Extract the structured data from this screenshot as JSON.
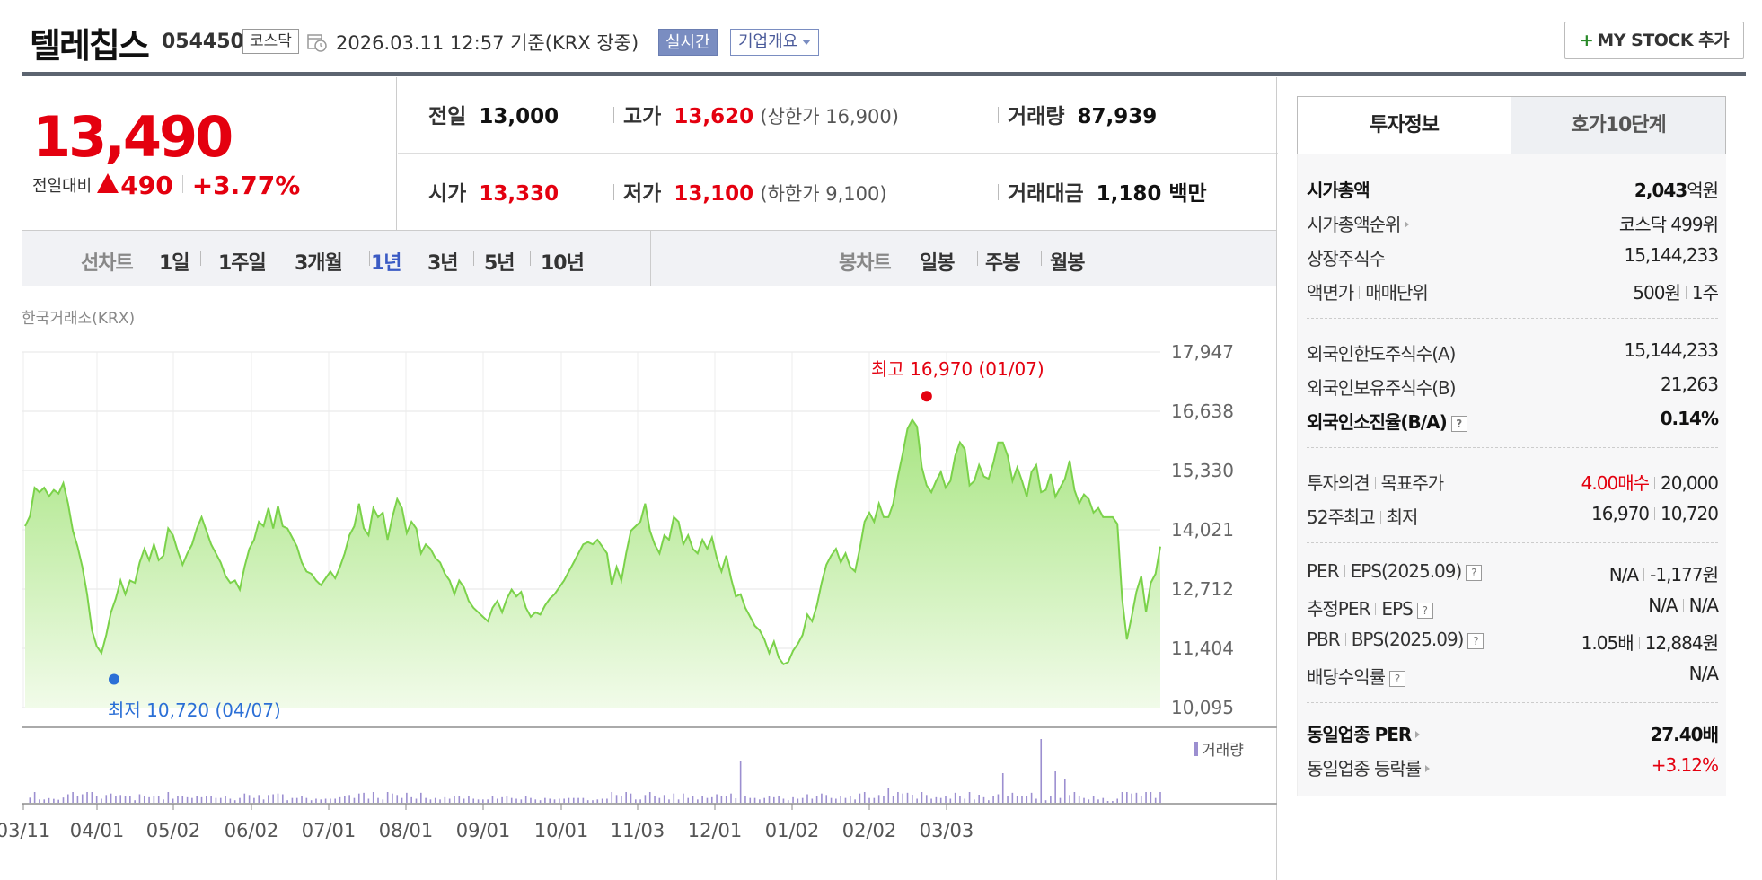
{
  "header": {
    "name": "텔레칩스",
    "code": "054450",
    "market": "코스닥",
    "datetime": "2026.03.11 12:57  기준(KRX 장중)",
    "realtime": "실시간",
    "corp_info": "기업개요",
    "mystock_plus": "+",
    "mystock": "MY STOCK 추가"
  },
  "price": {
    "current": "13,490",
    "diff_label": "전일대비",
    "diff_value": "490",
    "diff_pct": "+3.77%"
  },
  "stats": {
    "prev_label": "전일",
    "prev": "13,000",
    "high_label": "고가",
    "high": "13,620",
    "upper": "(상한가 16,900)",
    "vol_label": "거래량",
    "vol": "87,939",
    "open_label": "시가",
    "open": "13,330",
    "low_label": "저가",
    "low": "13,100",
    "lower": "(하한가 9,100)",
    "amt_label": "거래대금",
    "amt": "1,180 백만"
  },
  "period": {
    "line_label": "선차트",
    "line_items": [
      "1일",
      "1주일",
      "3개월",
      "1년",
      "3년",
      "5년",
      "10년"
    ],
    "active": "1년",
    "candle_label": "봉차트",
    "candle_items": [
      "일봉",
      "주봉",
      "월봉"
    ]
  },
  "exchange": "한국거래소(KRX)",
  "chart_data": {
    "type": "area",
    "x_ticks": [
      "03/11",
      "04/01",
      "05/02",
      "06/02",
      "07/01",
      "08/01",
      "09/01",
      "10/01",
      "11/03",
      "12/01",
      "01/02",
      "02/02",
      "03/03"
    ],
    "y_ticks": [
      "17,947",
      "16,638",
      "15,330",
      "14,021",
      "12,712",
      "11,404",
      "10,095"
    ],
    "ylim": [
      10095,
      17947
    ],
    "high_annotation": "최고 16,970 (01/07)",
    "low_annotation": "최저 10,720 (04/07)",
    "volume_legend": "거래량",
    "colors": {
      "line": "#7bd24a",
      "fill_top": "#a8e582",
      "fill_bottom": "#f1fbe9",
      "high": "#e4000f",
      "low": "#2b6fd6",
      "volume": "#9c8fd0"
    },
    "series": [
      {
        "values": [
          14100,
          14320,
          14950,
          14850,
          14950,
          14760,
          14900,
          14820,
          15050,
          14600,
          14000,
          13650,
          13200,
          12600,
          11800,
          11450,
          11300,
          11700,
          12200,
          12500,
          12900,
          12600,
          12900,
          12850,
          13300,
          13600,
          13350,
          13700,
          13350,
          13450,
          14050,
          13900,
          13550,
          13250,
          13500,
          13700,
          14050,
          14300,
          14000,
          13700,
          13500,
          13300,
          13000,
          12850,
          12900,
          12700,
          13200,
          13600,
          13800,
          14200,
          14100,
          14500,
          14050,
          14550,
          14100,
          14050,
          13850,
          13650,
          13300,
          13100,
          13050,
          12900,
          12800,
          12950,
          13100,
          12950,
          13200,
          13500,
          13900,
          14100,
          14600,
          14050,
          13900,
          14500,
          14300,
          14400,
          13800,
          14300,
          14700,
          14500,
          13950,
          14200,
          14050,
          13500,
          13700,
          13600,
          13400,
          13300,
          13050,
          12900,
          12600,
          12900,
          12750,
          12450,
          12300,
          12200,
          12100,
          12000,
          12300,
          12450,
          12200,
          12500,
          12700,
          12550,
          12650,
          12300,
          12100,
          12200,
          12150,
          12350,
          12500,
          12600,
          12750,
          12900,
          13100,
          13300,
          13500,
          13700,
          13750,
          13700,
          13800,
          13650,
          13500,
          12800,
          13200,
          12900,
          13500,
          14000,
          14100,
          14200,
          14600,
          14000,
          13700,
          13500,
          13900,
          13800,
          14300,
          14200,
          13700,
          13900,
          13600,
          13500,
          13800,
          13600,
          13850,
          13400,
          13100,
          13450,
          12950,
          12550,
          12600,
          12300,
          12100,
          11900,
          11800,
          11600,
          11300,
          11550,
          11200,
          11050,
          11100,
          11350,
          11500,
          11700,
          12150,
          12000,
          12350,
          12850,
          13250,
          13450,
          13600,
          13300,
          13500,
          13200,
          13100,
          13600,
          14200,
          14400,
          14200,
          14600,
          14300,
          14300,
          14600,
          15200,
          15700,
          16250,
          16450,
          16300,
          15400,
          15000,
          14850,
          15100,
          15300,
          14950,
          15100,
          15650,
          15950,
          15800,
          15000,
          15100,
          15450,
          15200,
          15150,
          15500,
          15950,
          15950,
          15650,
          15100,
          15400,
          15100,
          14750,
          15300,
          15450,
          14850,
          14900,
          15250,
          14750,
          14950,
          15150,
          15550,
          14900,
          14600,
          14800,
          14700,
          14400,
          14500,
          14300,
          14300,
          14300,
          14150,
          12500,
          11600,
          12100,
          12650,
          13000,
          12200,
          12850,
          13050,
          13650
        ]
      }
    ]
  },
  "panel": {
    "tab_active": "투자정보",
    "tab_other": "호가10단계",
    "mcap_label": "시가총액",
    "mcap_val": "2,043",
    "mcap_unit": "억원",
    "mcap_rank_label": "시가총액순위",
    "mcap_rank_val": "코스닥 499위",
    "shares_label": "상장주식수",
    "shares_val": "15,144,233",
    "par_label": "액면가",
    "unit_label": "매매단위",
    "par_val": "500원",
    "unit_val": "1주",
    "foreign_limit_label": "외국인한도주식수(A)",
    "foreign_limit_val": "15,144,233",
    "foreign_hold_label": "외국인보유주식수(B)",
    "foreign_hold_val": "21,263",
    "foreign_ratio_label": "외국인소진율(B/A)",
    "foreign_ratio_val": "0.14%",
    "opinion_label": "투자의견",
    "target_label": "목표주가",
    "opinion_val": "4.00매수",
    "target_val": "20,000",
    "w52_high_label": "52주최고",
    "w52_low_label": "최저",
    "w52_high_val": "16,970",
    "w52_low_val": "10,720",
    "per_label": "PER",
    "eps_label": "EPS(2025.09)",
    "per_val": "N/A",
    "eps_val": "-1,177원",
    "est_per_label": "추정PER",
    "est_eps_label": "EPS",
    "est_per_val": "N/A",
    "est_eps_val": "N/A",
    "pbr_label": "PBR",
    "bps_label": "BPS(2025.09)",
    "pbr_val": "1.05배",
    "bps_val": "12,884원",
    "div_label": "배당수익률",
    "div_val": "N/A",
    "ind_per_label": "동일업종 PER",
    "ind_per_val": "27.40배",
    "ind_chg_label": "동일업종 등락률",
    "ind_chg_val": "+3.12%"
  }
}
